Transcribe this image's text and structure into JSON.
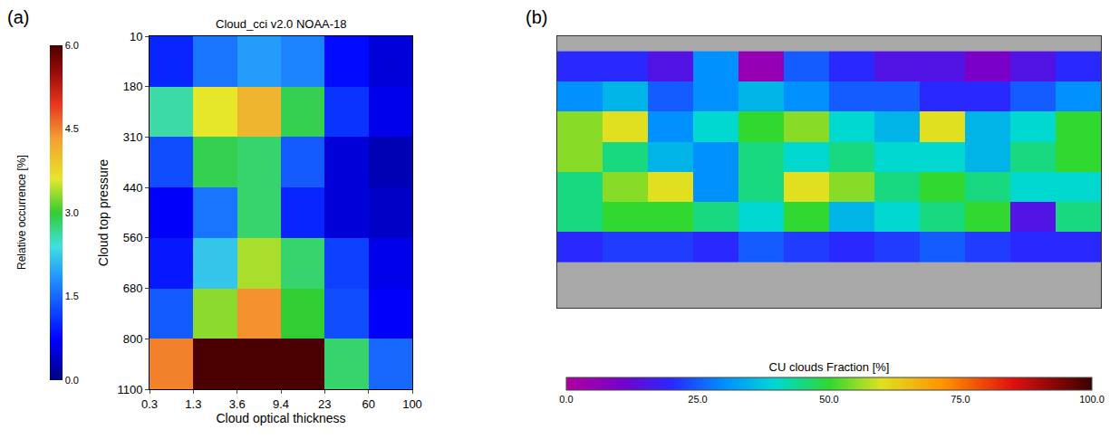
{
  "chart_data": [
    {
      "type": "heatmap",
      "panel_label": "(a)",
      "title": "Cloud_cci v2.0 NOAA-18",
      "x_label": "Cloud optical thickness",
      "y_label": "Cloud top pressure",
      "x_bin_edges": [
        0.3,
        1.3,
        3.6,
        9.4,
        23,
        60,
        100
      ],
      "y_bin_edges": [
        10,
        180,
        310,
        440,
        560,
        680,
        800,
        1100
      ],
      "z": [
        [
          1.0,
          1.6,
          1.9,
          1.7,
          0.8,
          0.5
        ],
        [
          2.6,
          3.6,
          4.1,
          2.9,
          1.1,
          0.6
        ],
        [
          1.3,
          2.9,
          2.8,
          1.4,
          0.5,
          0.3
        ],
        [
          0.7,
          1.6,
          2.8,
          1.0,
          0.5,
          0.4
        ],
        [
          0.9,
          2.2,
          3.4,
          2.8,
          1.2,
          0.6
        ],
        [
          1.4,
          3.3,
          4.4,
          3.0,
          1.3,
          0.7
        ],
        [
          4.5,
          6.0,
          6.0,
          6.0,
          2.8,
          1.5
        ]
      ],
      "colorbar": {
        "title": "Relative occurrence [%]",
        "range": [
          0,
          6
        ],
        "ticks": [
          {
            "value": 0,
            "label": "0.0"
          },
          {
            "value": 1.5,
            "label": "1.5"
          },
          {
            "value": 3,
            "label": "3.0"
          },
          {
            "value": 4.5,
            "label": "4.5"
          },
          {
            "value": 6,
            "label": "6.0"
          }
        ]
      }
    },
    {
      "type": "map",
      "panel_label": "(b)",
      "x": [
        -165,
        -135,
        -105,
        -75,
        -45,
        -15,
        15,
        45,
        75,
        105,
        135,
        165
      ],
      "y": [
        70,
        50,
        30,
        10,
        -10,
        -30,
        -50
      ],
      "z": [
        [
          20,
          20,
          15,
          30,
          5,
          25,
          20,
          15,
          15,
          10,
          15,
          20
        ],
        [
          30,
          35,
          25,
          30,
          35,
          30,
          25,
          25,
          20,
          20,
          25,
          30
        ],
        [
          55,
          60,
          30,
          40,
          50,
          55,
          40,
          35,
          60,
          35,
          40,
          50
        ],
        [
          55,
          45,
          35,
          30,
          45,
          40,
          45,
          40,
          40,
          35,
          45,
          50
        ],
        [
          45,
          55,
          60,
          30,
          45,
          60,
          55,
          45,
          50,
          45,
          40,
          40
        ],
        [
          45,
          50,
          50,
          45,
          40,
          50,
          35,
          40,
          45,
          50,
          15,
          45
        ],
        [
          20,
          22,
          22,
          20,
          25,
          22,
          20,
          22,
          25,
          22,
          20,
          20
        ]
      ],
      "xlim": [
        -180,
        180
      ],
      "ylim": [
        -90,
        90
      ],
      "tick_labels": false,
      "colorbar": {
        "title": "CU clouds Fraction [%]",
        "range": [
          0,
          100
        ],
        "ticks": [
          {
            "value": 0,
            "label": "0.0"
          },
          {
            "value": 25,
            "label": "25.0"
          },
          {
            "value": 50,
            "label": "50.0"
          },
          {
            "value": 75,
            "label": "75.0"
          },
          {
            "value": 100,
            "label": "100.0"
          }
        ]
      }
    }
  ]
}
